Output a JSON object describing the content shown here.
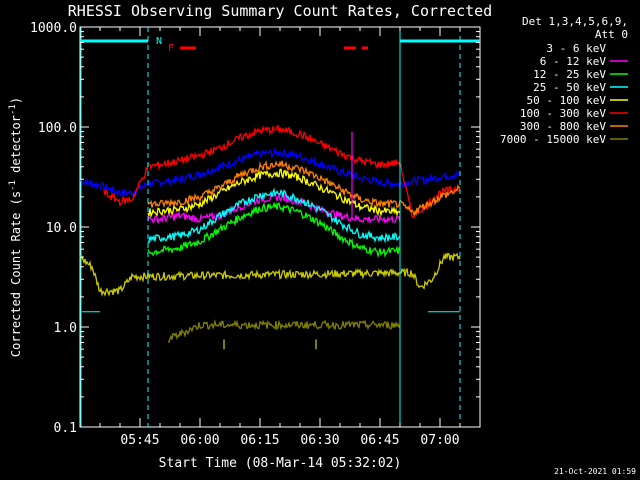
{
  "chart_data": {
    "type": "line",
    "title": "RHESSI Observing Summary Count Rates, Corrected",
    "xlabel": "Start Time (08-Mar-14 05:32:02)",
    "ylabel_pre": "Corrected Count Rate (s",
    "ylabel_sup1": "-1",
    "ylabel_mid": " detector",
    "ylabel_sup2": "-1",
    "ylabel_post": ")",
    "yscale": "log",
    "ylim": [
      0.1,
      1000
    ],
    "xlim_min": [
      0,
      100
    ],
    "x_tick_labels": [
      {
        "min": 15,
        "label": "05:45"
      },
      {
        "min": 30,
        "label": "06:00"
      },
      {
        "min": 45,
        "label": "06:15"
      },
      {
        "min": 60,
        "label": "06:30"
      },
      {
        "min": 75,
        "label": "06:45"
      },
      {
        "min": 90,
        "label": "07:00"
      }
    ],
    "y_tick_labels": [
      {
        "v": 0.1,
        "label": "0.1"
      },
      {
        "v": 1,
        "label": "1.0"
      },
      {
        "v": 10,
        "label": "10.0"
      },
      {
        "v": 100,
        "label": "100.0"
      },
      {
        "v": 1000,
        "label": "1000.0"
      }
    ],
    "legend_header": [
      "Det 1,3,4,5,6,9,",
      "Att 0"
    ],
    "legend_placement": "right",
    "series": [
      {
        "name": "3 - 6 keV",
        "color": "#000000",
        "points": [
          [
            17,
            5.2
          ],
          [
            20,
            5.5
          ],
          [
            25,
            6
          ],
          [
            30,
            7
          ],
          [
            35,
            9
          ],
          [
            40,
            12
          ],
          [
            45,
            15
          ],
          [
            50,
            16
          ],
          [
            55,
            14
          ],
          [
            60,
            11
          ],
          [
            65,
            8
          ],
          [
            70,
            6
          ],
          [
            75,
            5.2
          ],
          [
            80,
            5.3
          ]
        ]
      },
      {
        "name": "6 - 12 keV",
        "color": "#ff00ff",
        "points": [
          [
            17,
            12
          ],
          [
            20,
            12
          ],
          [
            25,
            13
          ],
          [
            30,
            12
          ],
          [
            35,
            13
          ],
          [
            40,
            16
          ],
          [
            45,
            19
          ],
          [
            50,
            20
          ],
          [
            55,
            18
          ],
          [
            60,
            15
          ],
          [
            65,
            13
          ],
          [
            70,
            12
          ],
          [
            75,
            12
          ],
          [
            80,
            12
          ]
        ]
      },
      {
        "name": "12 - 25 keV",
        "color": "#00ff00",
        "points": [
          [
            17,
            5.5
          ],
          [
            20,
            5.8
          ],
          [
            25,
            6.2
          ],
          [
            30,
            7.2
          ],
          [
            35,
            9.5
          ],
          [
            40,
            12.5
          ],
          [
            45,
            15.5
          ],
          [
            50,
            16
          ],
          [
            55,
            14
          ],
          [
            60,
            11
          ],
          [
            65,
            8
          ],
          [
            70,
            6.2
          ],
          [
            75,
            5.6
          ],
          [
            80,
            5.8
          ]
        ]
      },
      {
        "name": "25 - 50 keV",
        "color": "#00ffff",
        "points": [
          [
            17,
            7.5
          ],
          [
            20,
            7.8
          ],
          [
            25,
            8.2
          ],
          [
            30,
            9.5
          ],
          [
            35,
            13
          ],
          [
            40,
            17
          ],
          [
            45,
            21
          ],
          [
            50,
            22
          ],
          [
            55,
            19
          ],
          [
            60,
            15
          ],
          [
            65,
            11
          ],
          [
            70,
            8.5
          ],
          [
            75,
            7.8
          ],
          [
            80,
            8
          ]
        ]
      },
      {
        "name": "50 - 100 keV",
        "color": "#ffff00",
        "points": [
          [
            17,
            14
          ],
          [
            20,
            14.5
          ],
          [
            25,
            15
          ],
          [
            30,
            17
          ],
          [
            35,
            22
          ],
          [
            40,
            28
          ],
          [
            45,
            33
          ],
          [
            50,
            35
          ],
          [
            55,
            31
          ],
          [
            60,
            25
          ],
          [
            65,
            20
          ],
          [
            70,
            16
          ],
          [
            75,
            14.5
          ],
          [
            80,
            14
          ]
        ]
      },
      {
        "name": "100 - 300 keV",
        "color": "#ff0000",
        "points": [
          [
            6,
            22
          ],
          [
            10,
            18
          ],
          [
            13,
            19
          ],
          [
            17,
            40
          ],
          [
            20,
            42
          ],
          [
            25,
            46
          ],
          [
            30,
            52
          ],
          [
            35,
            62
          ],
          [
            40,
            78
          ],
          [
            45,
            92
          ],
          [
            50,
            95
          ],
          [
            55,
            85
          ],
          [
            60,
            68
          ],
          [
            65,
            55
          ],
          [
            70,
            46
          ],
          [
            75,
            42
          ],
          [
            80,
            44
          ],
          [
            83,
            13
          ],
          [
            87,
            17
          ],
          [
            90,
            22
          ],
          [
            95,
            25
          ]
        ]
      },
      {
        "name": "300 - 800 keV",
        "color": "#ff8000",
        "points": [
          [
            17,
            17
          ],
          [
            20,
            17
          ],
          [
            25,
            18
          ],
          [
            30,
            20
          ],
          [
            35,
            25
          ],
          [
            40,
            33
          ],
          [
            45,
            40
          ],
          [
            50,
            43
          ],
          [
            55,
            38
          ],
          [
            60,
            31
          ],
          [
            65,
            24
          ],
          [
            70,
            19
          ],
          [
            75,
            17
          ],
          [
            80,
            17
          ],
          [
            83,
            14
          ],
          [
            87,
            17
          ],
          [
            90,
            20
          ],
          [
            95,
            24
          ]
        ]
      },
      {
        "name": "7000 - 15000 keV",
        "color": "#808000",
        "points": [
          [
            22,
            0.75
          ],
          [
            30,
            1.05
          ],
          [
            40,
            1.05
          ],
          [
            50,
            1.05
          ],
          [
            60,
            1.05
          ],
          [
            70,
            1.05
          ],
          [
            80,
            1.05
          ]
        ]
      }
    ],
    "extra_traces": [
      {
        "color": "#0000ff",
        "points": [
          [
            0,
            29
          ],
          [
            5,
            26
          ],
          [
            10,
            22
          ],
          [
            13,
            22
          ],
          [
            17,
            27
          ],
          [
            20,
            28
          ],
          [
            25,
            30
          ],
          [
            30,
            34
          ],
          [
            35,
            40
          ],
          [
            40,
            47
          ],
          [
            45,
            54
          ],
          [
            50,
            56
          ],
          [
            55,
            51
          ],
          [
            60,
            43
          ],
          [
            65,
            36
          ],
          [
            70,
            31
          ],
          [
            75,
            28
          ],
          [
            80,
            27
          ],
          [
            83,
            29
          ],
          [
            87,
            30
          ],
          [
            90,
            32
          ],
          [
            95,
            34
          ]
        ]
      },
      {
        "color": "#cccc00",
        "points": [
          [
            0,
            5
          ],
          [
            3,
            4
          ],
          [
            5,
            2.3
          ],
          [
            10,
            2.3
          ],
          [
            13,
            3.2
          ],
          [
            83,
            3.5
          ],
          [
            85,
            2.5
          ],
          [
            88,
            3
          ],
          [
            91,
            5
          ],
          [
            95,
            5
          ]
        ]
      }
    ],
    "annotations": [
      {
        "text": "N",
        "color": "#00ffff"
      },
      {
        "text": "F",
        "color": "#ff0000"
      }
    ],
    "timestamp": "21-Oct-2021 01:59"
  }
}
